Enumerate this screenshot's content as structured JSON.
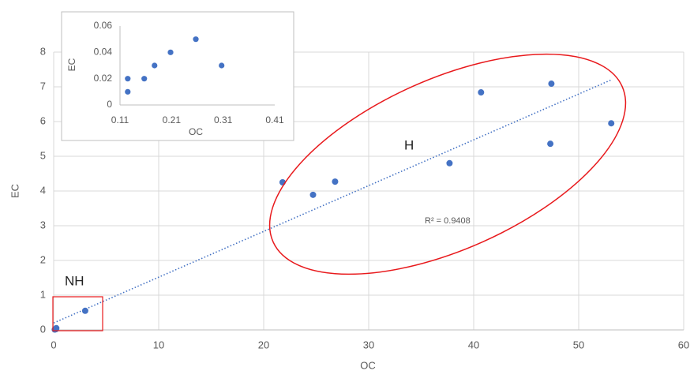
{
  "chart_data": [
    {
      "type": "scatter",
      "x_label": "OC",
      "y_label": "EC",
      "x": [
        0.1,
        0.2,
        0.25,
        3.0,
        21.8,
        24.7,
        26.8,
        37.7,
        40.7,
        47.4,
        47.3,
        53.1
      ],
      "series": [
        {
          "color": "#4472c4",
          "values": [
            0.01,
            0.02,
            0.05,
            0.55,
            4.25,
            3.89,
            4.27,
            4.8,
            6.84,
            7.09,
            5.36,
            5.95
          ]
        }
      ],
      "trendline": {
        "x": [
          0,
          53.1
        ],
        "y": [
          0.2,
          7.2
        ],
        "label": "R² = 0.9408"
      },
      "annotations": [
        "H",
        "NH"
      ],
      "xlim": [
        0,
        60
      ],
      "xticks": [
        0,
        10,
        20,
        30,
        40,
        50,
        60
      ],
      "ylim": [
        0,
        8
      ],
      "yticks": [
        0,
        1,
        2,
        3,
        4,
        5,
        6,
        7,
        8
      ],
      "grid": true
    },
    {
      "type": "scatter",
      "x_label": "OC",
      "y_label": "EC",
      "x": [
        0.125,
        0.125,
        0.157,
        0.177,
        0.208,
        0.257,
        0.307
      ],
      "series": [
        {
          "color": "#4472c4",
          "values": [
            0.02,
            0.01,
            0.02,
            0.03,
            0.04,
            0.05,
            0.03
          ]
        }
      ],
      "xlim": [
        0.11,
        0.41
      ],
      "xticks": [
        0.11,
        0.21,
        0.31,
        0.41
      ],
      "ylim": [
        0,
        0.06
      ],
      "yticks": [
        0,
        0.02,
        0.04,
        0.06
      ],
      "grid": false
    }
  ]
}
